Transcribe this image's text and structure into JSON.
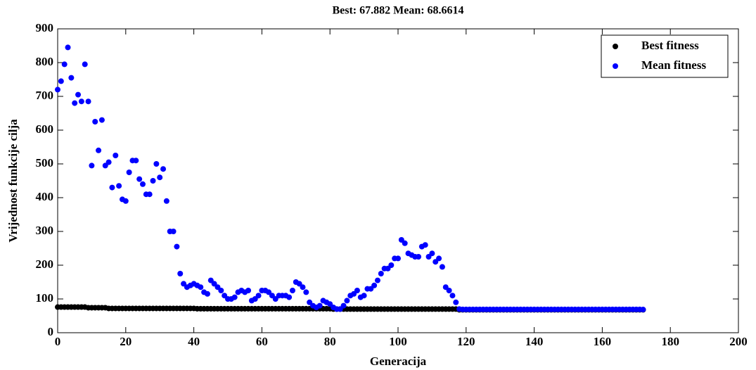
{
  "chart_data": {
    "type": "scatter",
    "title": "Best: 67.882 Mean: 68.6614",
    "x_label": "Generacija",
    "y_label": "Vrijednost funkcije cilja",
    "xlim": [
      0,
      200
    ],
    "xticks": [
      0,
      20,
      40,
      60,
      80,
      100,
      120,
      140,
      160,
      180,
      200
    ],
    "ylim": [
      0,
      900
    ],
    "yticks": [
      0,
      100,
      200,
      300,
      400,
      500,
      600,
      700,
      800,
      900
    ],
    "legend": "northeast",
    "x": [
      0,
      1,
      2,
      3,
      4,
      5,
      6,
      7,
      8,
      9,
      10,
      11,
      12,
      13,
      14,
      15,
      16,
      17,
      18,
      19,
      20,
      21,
      22,
      23,
      24,
      25,
      26,
      27,
      28,
      29,
      30,
      31,
      32,
      33,
      34,
      35,
      36,
      37,
      38,
      39,
      40,
      41,
      42,
      43,
      44,
      45,
      46,
      47,
      48,
      49,
      50,
      51,
      52,
      53,
      54,
      55,
      56,
      57,
      58,
      59,
      60,
      61,
      62,
      63,
      64,
      65,
      66,
      67,
      68,
      69,
      70,
      71,
      72,
      73,
      74,
      75,
      76,
      77,
      78,
      79,
      80,
      81,
      82,
      83,
      84,
      85,
      86,
      87,
      88,
      89,
      90,
      91,
      92,
      93,
      94,
      95,
      96,
      97,
      98,
      99,
      100,
      101,
      102,
      103,
      104,
      105,
      106,
      107,
      108,
      109,
      110,
      111,
      112,
      113,
      114,
      115,
      116,
      117,
      118,
      119,
      120,
      121,
      122,
      123,
      124,
      125,
      126,
      127,
      128,
      129,
      130,
      131,
      132,
      133,
      134,
      135,
      136,
      137,
      138,
      139,
      140,
      141,
      142,
      143,
      144,
      145,
      146,
      147,
      148,
      149,
      150,
      151,
      152,
      153,
      154,
      155,
      156,
      157,
      158,
      159,
      160,
      161,
      162,
      163,
      164,
      165,
      166,
      167,
      168,
      169,
      170,
      171,
      172,
      173
    ],
    "series": [
      {
        "name": "Best fitness",
        "color": "#000000",
        "values": [
          76,
          76,
          76,
          76,
          76,
          76,
          76,
          76,
          76,
          74,
          74,
          74,
          74,
          74,
          74,
          72,
          72,
          72,
          72,
          72,
          72,
          72,
          72,
          72,
          72,
          72,
          72,
          72,
          72,
          72,
          72,
          72,
          72,
          72,
          72,
          72,
          72,
          72,
          72,
          72,
          72,
          71,
          71,
          71,
          71,
          71,
          71,
          71,
          71,
          71,
          71,
          71,
          71,
          71,
          71,
          71,
          71,
          71,
          71,
          71,
          71,
          71,
          71,
          71,
          71,
          71,
          71,
          71,
          71,
          71,
          71,
          71,
          71,
          71,
          71,
          71,
          71,
          71,
          71,
          71,
          71,
          70,
          70,
          70,
          70,
          70,
          70,
          70,
          70,
          70,
          70,
          70,
          70,
          70,
          70,
          70,
          70,
          70,
          70,
          70,
          70,
          70,
          70,
          70,
          70,
          70,
          70,
          70,
          70,
          70,
          70,
          70,
          70,
          70,
          70,
          70,
          70,
          70,
          68,
          68,
          68,
          68,
          68,
          68,
          68,
          68,
          68,
          68,
          68,
          68,
          68,
          68,
          68,
          68,
          68,
          68,
          68,
          68,
          68,
          68,
          68,
          68,
          68,
          68,
          68,
          68,
          68,
          68,
          68,
          68,
          68,
          68,
          68,
          68,
          68,
          68,
          68,
          68,
          68,
          68,
          68,
          68,
          68,
          68,
          68,
          68,
          68,
          68,
          68,
          68,
          68,
          68,
          67.882
        ]
      },
      {
        "name": "Mean fitness",
        "color": "#0000ff",
        "values": [
          720,
          745,
          795,
          845,
          755,
          680,
          705,
          685,
          795,
          685,
          495,
          625,
          540,
          630,
          495,
          505,
          430,
          525,
          435,
          395,
          390,
          475,
          510,
          510,
          455,
          440,
          410,
          410,
          450,
          500,
          460,
          485,
          390,
          300,
          300,
          255,
          175,
          145,
          135,
          140,
          145,
          140,
          135,
          120,
          115,
          155,
          145,
          135,
          125,
          110,
          100,
          100,
          105,
          120,
          125,
          120,
          125,
          95,
          100,
          110,
          125,
          125,
          120,
          110,
          100,
          110,
          110,
          110,
          105,
          125,
          150,
          145,
          135,
          120,
          90,
          80,
          75,
          80,
          95,
          90,
          85,
          75,
          70,
          70,
          80,
          95,
          110,
          115,
          125,
          105,
          110,
          130,
          130,
          140,
          155,
          175,
          190,
          190,
          200,
          220,
          220,
          275,
          265,
          235,
          230,
          225,
          225,
          255,
          260,
          225,
          235,
          210,
          220,
          195,
          135,
          125,
          110,
          90,
          70,
          69,
          69,
          69,
          69,
          69,
          69,
          69,
          69,
          69,
          69,
          69,
          69,
          69,
          69,
          69,
          69,
          69,
          69,
          69,
          69,
          69,
          69,
          69,
          69,
          69,
          69,
          69,
          69,
          69,
          69,
          69,
          69,
          69,
          69,
          69,
          69,
          69,
          69,
          69,
          69,
          69,
          69,
          69,
          69,
          69,
          69,
          69,
          69,
          69,
          69,
          69,
          69,
          69,
          68.6614
        ]
      }
    ]
  }
}
